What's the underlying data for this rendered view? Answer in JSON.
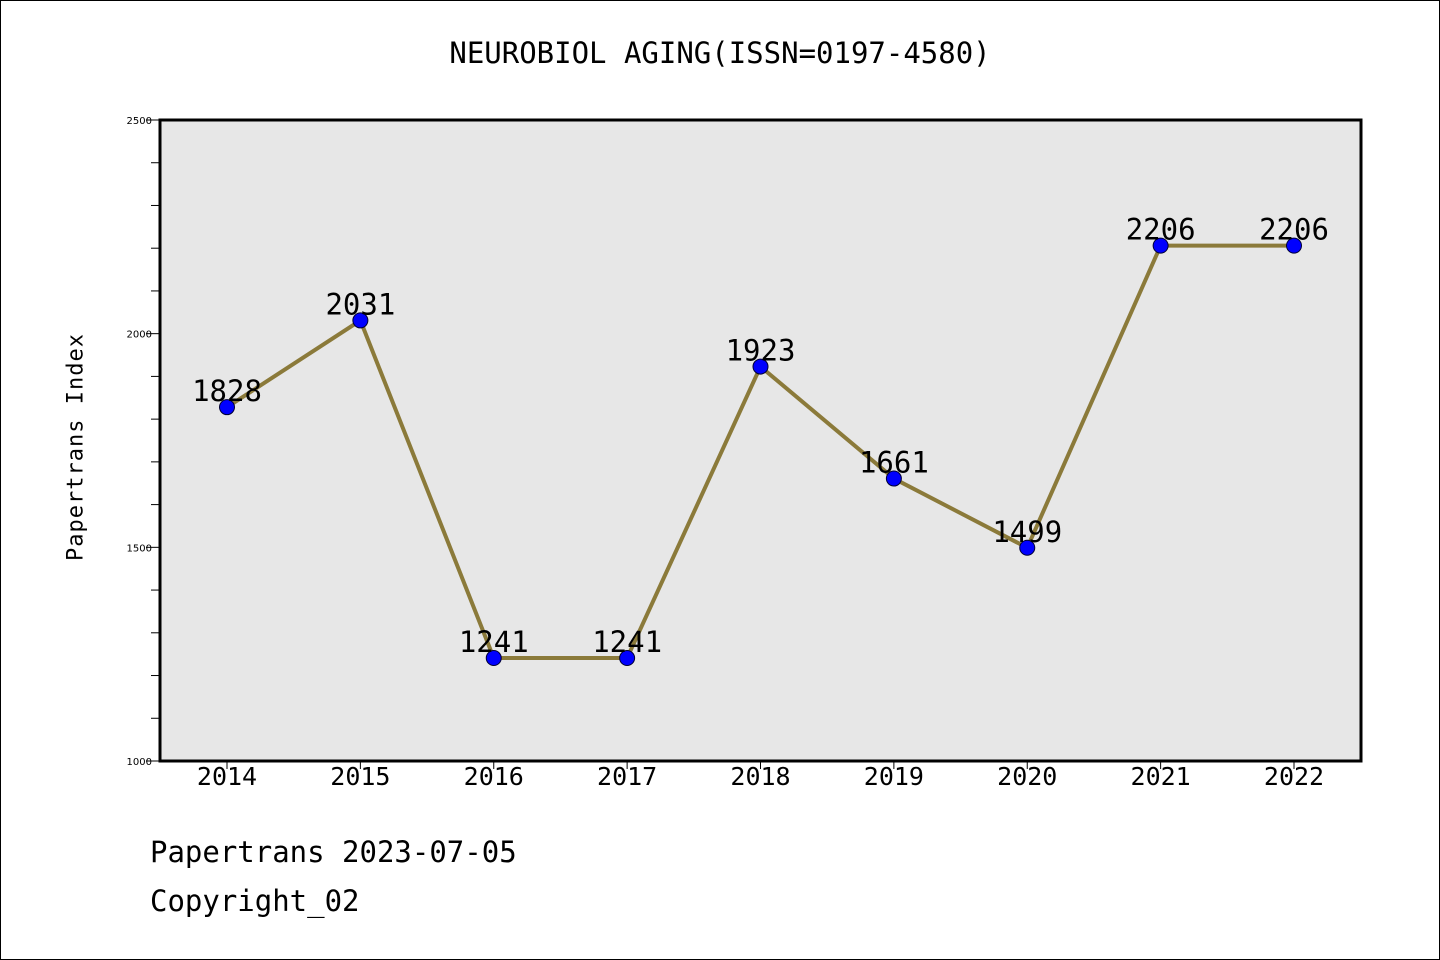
{
  "footer": {
    "credit": "Papertrans 2023-07-05",
    "copyright": "Copyright_02"
  },
  "colors": {
    "plot_background": "#e7e7e7",
    "line": "#8b7a3a",
    "marker": "#0000ff",
    "axis": "#000000"
  },
  "chart_data": {
    "type": "line",
    "title": "NEUROBIOL AGING(ISSN=0197-4580)",
    "xlabel": "",
    "ylabel": "Papertrans Index",
    "categories": [
      "2014",
      "2015",
      "2016",
      "2017",
      "2018",
      "2019",
      "2020",
      "2021",
      "2022"
    ],
    "series": [
      {
        "values": [
          1828,
          2031,
          1241,
          1241,
          1923,
          1661,
          1499,
          2206,
          2206
        ]
      }
    ],
    "data_labels": [
      "1828",
      "2031",
      "1241",
      "1241",
      "1923",
      "1661",
      "1499",
      "2206",
      "2206"
    ],
    "ylim": [
      1000,
      2500
    ],
    "yticks": [
      "1000",
      "1500",
      "2000",
      "2500"
    ],
    "grid": false,
    "legend": "none"
  }
}
